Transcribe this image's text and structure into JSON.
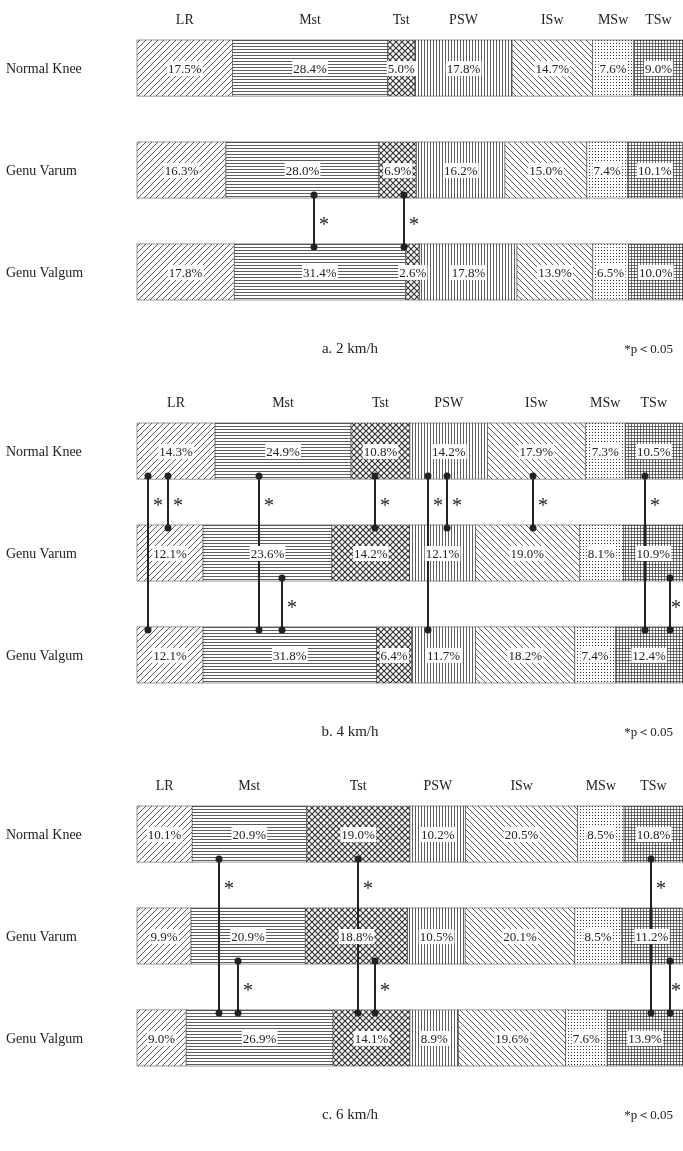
{
  "chart_data": [
    {
      "type": "bar",
      "orientation": "horizontal",
      "stacked": true,
      "title": "a. 2 km/h",
      "tick_labels": "y",
      "xlim": [
        0,
        100
      ],
      "categories": [
        "Normal Knee",
        "Genu Varum",
        "Genu Valgum"
      ],
      "series": [
        {
          "name": "LR",
          "color": "#333333",
          "values": [
            17.5,
            16.3,
            17.8
          ],
          "value_labels": [
            "17.5%",
            "16.3%",
            "17.8%"
          ]
        },
        {
          "name": "Mst",
          "color": "#333333",
          "values": [
            28.4,
            28.0,
            31.4
          ],
          "value_labels": [
            "28.4%",
            "28.0%",
            "31.4%"
          ]
        },
        {
          "name": "Tst",
          "color": "#333333",
          "values": [
            5.0,
            6.9,
            2.6
          ],
          "value_labels": [
            "5.0%",
            "6.9%",
            "2.6%"
          ]
        },
        {
          "name": "PSW",
          "color": "#333333",
          "values": [
            17.8,
            16.2,
            17.8
          ],
          "value_labels": [
            "17.8%",
            "16.2%",
            "17.8%"
          ]
        },
        {
          "name": "ISw",
          "color": "#333333",
          "values": [
            14.7,
            15.0,
            13.9
          ],
          "value_labels": [
            "14.7%",
            "15.0%",
            "13.9%"
          ]
        },
        {
          "name": "MSw",
          "color": "#333333",
          "values": [
            7.6,
            7.4,
            6.5
          ],
          "value_labels": [
            "7.6%",
            "7.4%",
            "6.5%"
          ]
        },
        {
          "name": "TSw",
          "color": "#333333",
          "values": [
            9.0,
            10.1,
            10.0
          ],
          "value_labels": [
            "9.0%",
            "10.1%",
            "10.0%"
          ]
        }
      ],
      "annotations": [
        "*",
        "*",
        "*p＜0.05"
      ]
    },
    {
      "type": "bar",
      "orientation": "horizontal",
      "stacked": true,
      "title": "b. 4 km/h",
      "tick_labels": "y",
      "xlim": [
        0,
        100
      ],
      "categories": [
        "Normal Knee",
        "Genu Varum",
        "Genu Valgum"
      ],
      "series": [
        {
          "name": "LR",
          "color": "#333333",
          "values": [
            14.3,
            12.1,
            12.1
          ],
          "value_labels": [
            "14.3%",
            "12.1%",
            "12.1%"
          ]
        },
        {
          "name": "Mst",
          "color": "#333333",
          "values": [
            24.9,
            23.6,
            31.8
          ],
          "value_labels": [
            "24.9%",
            "23.6%",
            "31.8%"
          ]
        },
        {
          "name": "Tst",
          "color": "#333333",
          "values": [
            10.8,
            14.2,
            6.4
          ],
          "value_labels": [
            "10.8%",
            "14.2%",
            "6.4%"
          ]
        },
        {
          "name": "PSW",
          "color": "#333333",
          "values": [
            14.2,
            12.1,
            11.7
          ],
          "value_labels": [
            "14.2%",
            "12.1%",
            "11.7%"
          ]
        },
        {
          "name": "ISw",
          "color": "#333333",
          "values": [
            17.9,
            19.0,
            18.2
          ],
          "value_labels": [
            "17.9%",
            "19.0%",
            "18.2%"
          ]
        },
        {
          "name": "MSw",
          "color": "#333333",
          "values": [
            7.3,
            8.1,
            7.4
          ],
          "value_labels": [
            "7.3%",
            "8.1%",
            "7.4%"
          ]
        },
        {
          "name": "TSw",
          "color": "#333333",
          "values": [
            10.5,
            10.9,
            12.4
          ],
          "value_labels": [
            "10.5%",
            "10.9%",
            "12.4%"
          ]
        }
      ],
      "annotations": [
        "*",
        "*",
        "*",
        "*",
        "*",
        "*",
        "*",
        "*",
        "*",
        "*",
        "*p＜0.05"
      ]
    },
    {
      "type": "bar",
      "orientation": "horizontal",
      "stacked": true,
      "title": "c. 6 km/h",
      "tick_labels": "y",
      "xlim": [
        0,
        100
      ],
      "categories": [
        "Normal Knee",
        "Genu Varum",
        "Genu Valgum"
      ],
      "series": [
        {
          "name": "LR",
          "color": "#333333",
          "values": [
            10.1,
            9.9,
            9.0
          ],
          "value_labels": [
            "10.1%",
            "9.9%",
            "9.0%"
          ]
        },
        {
          "name": "Mst",
          "color": "#333333",
          "values": [
            20.9,
            20.9,
            26.9
          ],
          "value_labels": [
            "20.9%",
            "20.9%",
            "26.9%"
          ]
        },
        {
          "name": "Tst",
          "color": "#333333",
          "values": [
            19.0,
            18.8,
            14.1
          ],
          "value_labels": [
            "19.0%",
            "18.8%",
            "14.1%"
          ]
        },
        {
          "name": "PSW",
          "color": "#333333",
          "values": [
            10.2,
            10.5,
            8.9
          ],
          "value_labels": [
            "10.2%",
            "10.5%",
            "8.9%"
          ]
        },
        {
          "name": "ISw",
          "color": "#333333",
          "values": [
            20.5,
            20.1,
            19.6
          ],
          "value_labels": [
            "20.5%",
            "20.1%",
            "19.6%"
          ]
        },
        {
          "name": "MSw",
          "color": "#333333",
          "values": [
            8.5,
            8.5,
            7.6
          ],
          "value_labels": [
            "8.5%",
            "8.5%",
            "7.6%"
          ]
        },
        {
          "name": "TSw",
          "color": "#333333",
          "values": [
            10.8,
            11.2,
            13.9
          ],
          "value_labels": [
            "10.8%",
            "11.2%",
            "13.9%"
          ]
        }
      ],
      "annotations": [
        "*",
        "*",
        "*",
        "*",
        "*",
        "*",
        "*p＜0.05"
      ]
    }
  ]
}
